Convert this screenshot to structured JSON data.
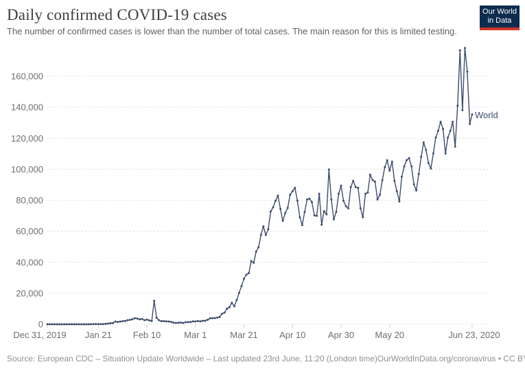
{
  "header": {
    "title": "Daily confirmed COVID-19 cases",
    "subtitle": "The number of confirmed cases is lower than the number of total cases. The main reason for this is limited testing."
  },
  "logo": {
    "line1": "Our World",
    "line2": "in Data",
    "bg_color": "#0d2c4e",
    "accent_color": "#d0342c"
  },
  "footer": {
    "source": "Source: European CDC – Situation Update Worldwide – Last updated 23rd June, 11:20 (London time)",
    "attribution": "OurWorldInData.org/coronavirus • CC BY"
  },
  "chart_data": {
    "type": "line",
    "title": "Daily confirmed COVID-19 cases",
    "series_label": "World",
    "line_color": "#3b4c6b",
    "grid_color": "#dddddd",
    "tick_color": "#cccccc",
    "axis_text_color": "#6e6e6e",
    "grid_on": true,
    "legend_position": "end-of-line",
    "x_unit": "day",
    "start_date": "Dec 31, 2019",
    "end_date": "Jun 23, 2020",
    "ylim": [
      0,
      180000
    ],
    "y_ticks": [
      0,
      20000,
      40000,
      60000,
      80000,
      100000,
      120000,
      140000,
      160000
    ],
    "x_ticks": [
      {
        "day": 0,
        "label": "Dec 31, 2019"
      },
      {
        "day": 21,
        "label": "Jan 21"
      },
      {
        "day": 41,
        "label": "Feb 10"
      },
      {
        "day": 61,
        "label": "Mar 1"
      },
      {
        "day": 81,
        "label": "Mar 21"
      },
      {
        "day": 101,
        "label": "Apr 10"
      },
      {
        "day": 121,
        "label": "Apr 30"
      },
      {
        "day": 141,
        "label": "May 20"
      },
      {
        "day": 175,
        "label": "Jun 23, 2020"
      }
    ],
    "values": [
      27,
      0,
      17,
      0,
      15,
      0,
      0,
      0,
      0,
      0,
      40,
      10,
      1,
      1,
      5,
      5,
      15,
      17,
      59,
      136,
      140,
      150,
      140,
      97,
      259,
      441,
      665,
      787,
      1753,
      1466,
      1740,
      1980,
      2127,
      2603,
      2836,
      3239,
      3915,
      3721,
      3173,
      3405,
      2672,
      2986,
      2505,
      2070,
      15141,
      4156,
      2615,
      2008,
      2051,
      1890,
      1752,
      1529,
      1079,
      893,
      986,
      1124,
      863,
      1360,
      1372,
      1435,
      1873,
      1806,
      2103,
      1922,
      2228,
      2241,
      2883,
      3823,
      3955,
      4006,
      4279,
      4678,
      6844,
      7522,
      10018,
      10982,
      13903,
      11594,
      15544,
      20309,
      24742,
      29343,
      32037,
      33016,
      40788,
      39648,
      46894,
      49621,
      57736,
      63159,
      57610,
      61334,
      72736,
      75507,
      79657,
      83005,
      74398,
      66766,
      71819,
      75100,
      83500,
      85900,
      88000,
      79800,
      69000,
      64000,
      72400,
      80500,
      81000,
      78800,
      70200,
      70000,
      84200,
      64200,
      73000,
      70900,
      99800,
      80500,
      67700,
      72500,
      84200,
      89400,
      79700,
      76100,
      74800,
      88500,
      92500,
      88500,
      88000,
      74800,
      69000,
      84200,
      85000,
      96500,
      93000,
      92000,
      80500,
      83600,
      93000,
      101300,
      105800,
      99100,
      104900,
      92500,
      85900,
      79200,
      95200,
      101800,
      105800,
      107200,
      101800,
      90300,
      86300,
      96900,
      108000,
      117300,
      112400,
      104000,
      100500,
      110200,
      120400,
      124800,
      130600,
      126000,
      110200,
      120400,
      124800,
      130600,
      114600,
      141000,
      176700,
      138100,
      178200,
      163000,
      129200,
      135400
    ]
  }
}
